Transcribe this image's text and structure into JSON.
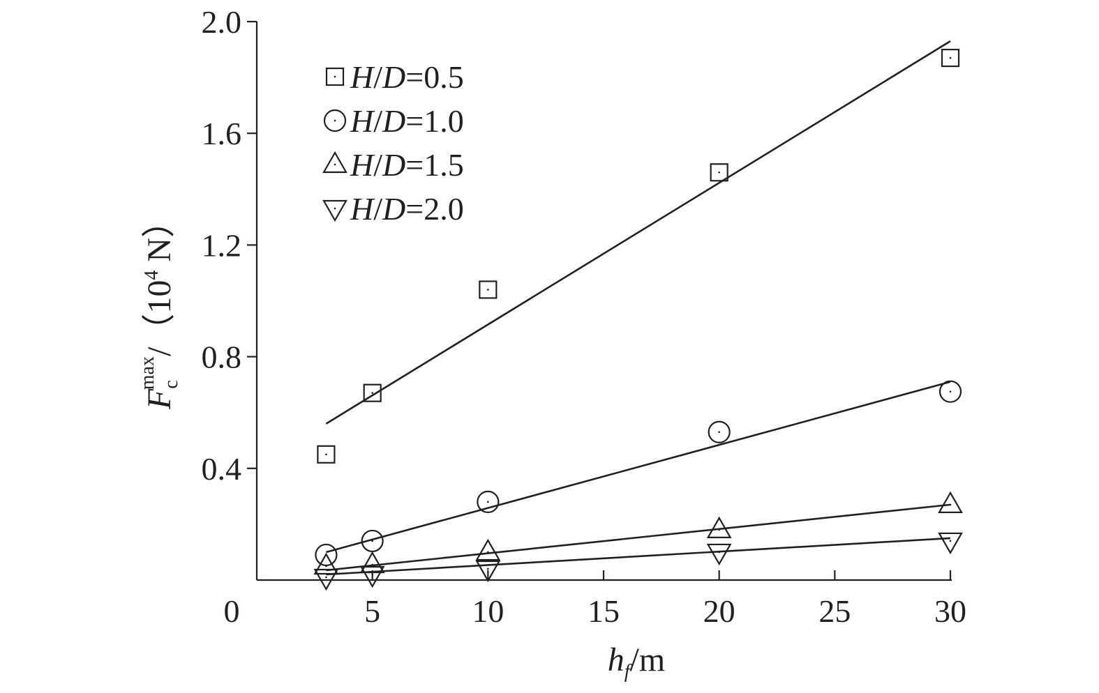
{
  "chart_data": {
    "type": "scatter",
    "xlabel": {
      "main": "h",
      "sub": "f",
      "unit": "/m"
    },
    "ylabel": {
      "main": "F",
      "sub": "c",
      "sup": "max",
      "unit_open": "/（10",
      "unit_exp": "4",
      "unit_close": " N）"
    },
    "xlim": [
      0,
      30
    ],
    "ylim": [
      0,
      2.0
    ],
    "x_ticks": [
      5,
      10,
      15,
      20,
      25,
      30
    ],
    "x_tick_labels": [
      "5",
      "10",
      "15",
      "20",
      "25",
      "30"
    ],
    "y_ticks": [
      0.4,
      0.8,
      1.2,
      1.6,
      2.0
    ],
    "y_tick_labels": [
      "0.4",
      "0.8",
      "1.2",
      "1.6",
      "2.0"
    ],
    "origin_label": "0",
    "grid": false,
    "legend_position": "top-left",
    "series": [
      {
        "name_var1": "H",
        "name_sep": "/",
        "name_var2": "D",
        "name_value": "=0.5",
        "marker": "square",
        "x": [
          3,
          5,
          10,
          20,
          30
        ],
        "y": [
          0.45,
          0.67,
          1.04,
          1.46,
          1.87
        ],
        "fit": {
          "x": [
            3,
            30
          ],
          "y": [
            0.56,
            1.93
          ]
        }
      },
      {
        "name_var1": "H",
        "name_sep": "/",
        "name_var2": "D",
        "name_value": "=1.0",
        "marker": "circle",
        "x": [
          3,
          5,
          10,
          20,
          30
        ],
        "y": [
          0.09,
          0.14,
          0.28,
          0.53,
          0.675
        ],
        "fit": {
          "x": [
            3,
            30
          ],
          "y": [
            0.1,
            0.71
          ]
        }
      },
      {
        "name_var1": "H",
        "name_sep": "/",
        "name_var2": "D",
        "name_value": "=1.5",
        "marker": "triangle-up",
        "x": [
          3,
          5,
          10,
          20,
          30
        ],
        "y": [
          0.05,
          0.055,
          0.1,
          0.18,
          0.27
        ],
        "fit": {
          "x": [
            3,
            30
          ],
          "y": [
            0.035,
            0.27
          ]
        }
      },
      {
        "name_var1": "H",
        "name_sep": "/",
        "name_var2": "D",
        "name_value": "=2.0",
        "marker": "triangle-down",
        "x": [
          3,
          5,
          10,
          20,
          30
        ],
        "y": [
          0.01,
          0.02,
          0.04,
          0.1,
          0.14
        ],
        "fit": {
          "x": [
            3,
            30
          ],
          "y": [
            0.02,
            0.15
          ]
        }
      }
    ]
  }
}
